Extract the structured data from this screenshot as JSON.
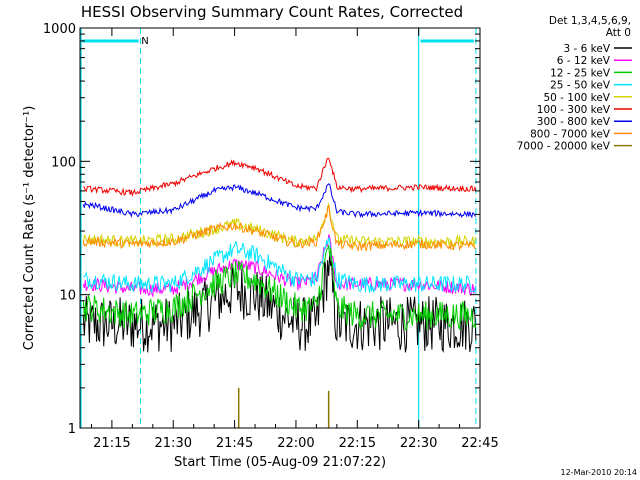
{
  "chart_data": {
    "type": "line",
    "title": "HESSI Observing Summary Count Rates, Corrected",
    "xlabel": "Start Time (05-Aug-09 21:07:22)",
    "ylabel": "Corrected Count Rate (s⁻¹ detector⁻¹)",
    "yscale": "log",
    "ylim": [
      1,
      1000
    ],
    "xlim_minutes": [
      21.12,
      22.75
    ],
    "x_ticks": [
      "21:15",
      "21:30",
      "21:45",
      "22:00",
      "22:15",
      "22:30",
      "22:45"
    ],
    "y_ticks": [
      "1",
      "10",
      "100",
      "1000"
    ],
    "legend_header": [
      "Det 1,3,4,5,6,9,",
      "Att 0"
    ],
    "legend_placement": "right",
    "annotation_N": "N",
    "footer_date": "12-Mar-2010 20:14",
    "background_color": "#ffffff",
    "night_color": "#00e0f0",
    "shaded_intervals": [
      {
        "label": "N",
        "start": "21:07",
        "end": "21:22"
      },
      {
        "label": "",
        "start": "22:30",
        "end": "22:44"
      }
    ],
    "x": [
      "21:10",
      "21:20",
      "21:30",
      "21:40",
      "21:45",
      "21:50",
      "22:00",
      "22:05",
      "22:08",
      "22:10",
      "22:15",
      "22:30",
      "22:44"
    ],
    "series": [
      {
        "name": "3 - 6 keV",
        "color": "#000000",
        "noise": 0.35,
        "values": [
          6,
          6,
          6,
          9,
          11,
          10,
          6,
          6,
          17,
          6,
          6,
          6,
          6
        ]
      },
      {
        "name": "6 - 12 keV",
        "color": "#ff00ff",
        "noise": 0.12,
        "values": [
          12,
          11,
          11,
          15,
          17,
          16,
          12,
          13,
          27,
          12,
          12,
          12,
          11
        ]
      },
      {
        "name": "12 - 25 keV",
        "color": "#00cc00",
        "noise": 0.25,
        "values": [
          8,
          7,
          8,
          12,
          14,
          13,
          8,
          8,
          24,
          8,
          7,
          7,
          7
        ]
      },
      {
        "name": "25 - 50 keV",
        "color": "#00e5ff",
        "noise": 0.15,
        "values": [
          13,
          12,
          12,
          18,
          22,
          20,
          13,
          13,
          26,
          13,
          12,
          12,
          12
        ]
      },
      {
        "name": "50 - 100 keV",
        "color": "#d4d400",
        "noise": 0.1,
        "values": [
          26,
          25,
          26,
          31,
          34,
          31,
          25,
          26,
          47,
          26,
          25,
          25,
          25
        ]
      },
      {
        "name": "100 - 300 keV",
        "color": "#ee0000",
        "noise": 0.05,
        "values": [
          62,
          58,
          68,
          88,
          98,
          90,
          65,
          63,
          110,
          64,
          62,
          64,
          62
        ]
      },
      {
        "name": "300 - 800 keV",
        "color": "#0000ee",
        "noise": 0.05,
        "values": [
          47,
          40,
          43,
          60,
          64,
          58,
          45,
          44,
          68,
          42,
          40,
          41,
          40
        ]
      },
      {
        "name": "800 - 7000 keV",
        "color": "#ff8c00",
        "noise": 0.08,
        "values": [
          25,
          24,
          25,
          31,
          33,
          30,
          24,
          25,
          44,
          24,
          23,
          24,
          23
        ]
      },
      {
        "name": "7000 - 20000 keV",
        "color": "#8c7a00",
        "noise": 0,
        "values": [
          0,
          0,
          0,
          0,
          0,
          0,
          0,
          0,
          0,
          0,
          0,
          0,
          0
        ],
        "spikes": [
          {
            "t": "21:46",
            "v": 2.0
          },
          {
            "t": "22:08",
            "v": 1.9
          }
        ]
      }
    ]
  }
}
